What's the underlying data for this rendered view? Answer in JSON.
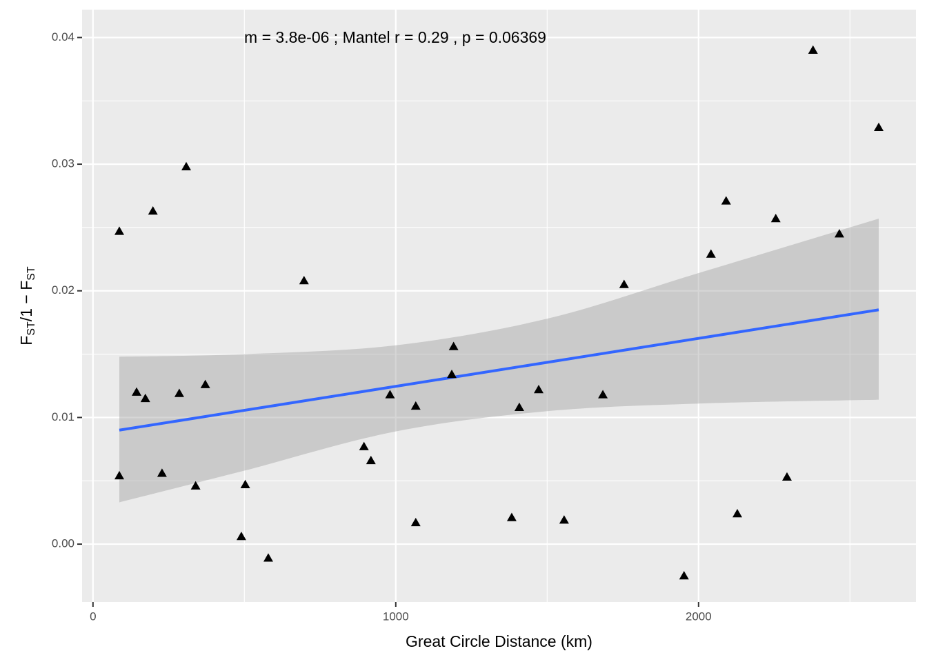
{
  "chart_data": {
    "type": "scatter",
    "annotation": "m = 3.8e-06 ; Mantel r = 0.29 , p = 0.06369",
    "xlabel": "Great Circle Distance (km)",
    "ylabel": [
      "F",
      "ST",
      "/1 − F",
      "ST"
    ],
    "x": [
      87,
      87,
      144,
      173,
      198,
      228,
      285,
      308,
      339,
      371,
      490,
      503,
      579,
      697,
      895,
      918,
      981,
      1066,
      1066,
      1185,
      1191,
      1383,
      1408,
      1472,
      1556,
      1684,
      1754,
      1952,
      2041,
      2091,
      2128,
      2255,
      2292,
      2378,
      2465,
      2595
    ],
    "values": [
      0.0247,
      0.0054,
      0.012,
      0.0115,
      0.0263,
      0.0056,
      0.0119,
      0.0298,
      0.0046,
      0.0126,
      0.0006,
      0.0047,
      -0.0011,
      0.0208,
      0.0077,
      0.0066,
      0.0118,
      0.0109,
      0.0017,
      0.0134,
      0.0156,
      0.0021,
      0.0108,
      0.0122,
      0.0019,
      0.0118,
      0.0205,
      -0.0025,
      0.0229,
      0.0271,
      0.0024,
      0.0257,
      0.0053,
      0.039,
      0.0245,
      0.0329
    ],
    "color": "#000000",
    "fit": {
      "x": [
        87,
        2595
      ],
      "values": [
        0.009,
        0.0185
      ],
      "color": "#3366ff"
    },
    "ribbon": {
      "x": [
        87,
        500,
        1000,
        1500,
        2000,
        2595
      ],
      "upper": [
        0.0148,
        0.015,
        0.0157,
        0.0178,
        0.0214,
        0.0257
      ],
      "lower": [
        0.0033,
        0.0058,
        0.0089,
        0.0105,
        0.0111,
        0.0114
      ],
      "color": "#999999"
    },
    "xlim": [
      -36,
      2718
    ],
    "ylim": [
      -0.00457,
      0.0422
    ],
    "xticks": [
      0,
      1000,
      2000
    ],
    "yticks": [
      {
        "value": 0,
        "label": "0.00"
      },
      0.01,
      0.02,
      0.03,
      0.04
    ],
    "xminor": [
      500,
      1500,
      2500
    ],
    "yminor": [
      0.005,
      0.015,
      0.025,
      0.035
    ],
    "grid": true
  }
}
